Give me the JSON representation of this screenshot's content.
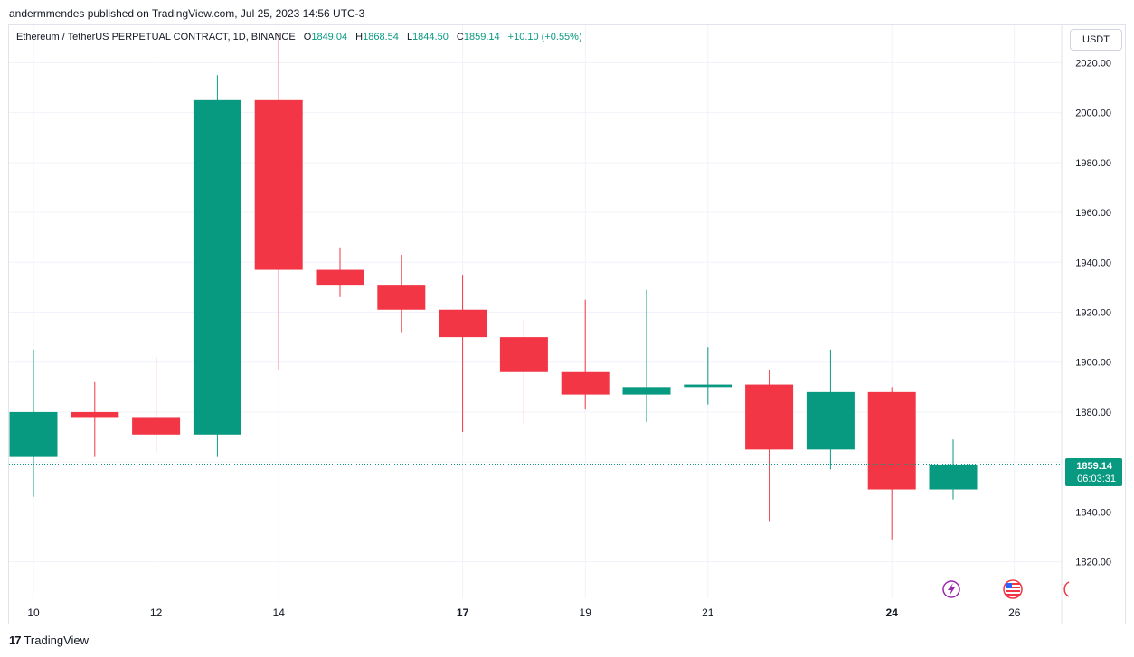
{
  "header": {
    "published": "andermmendes published on TradingView.com, Jul 25, 2023 14:56 UTC-3"
  },
  "legend": {
    "symbol": "Ethereum / TetherUS PERPETUAL CONTRACT, 1D, BINANCE",
    "open_label": "O",
    "open": "1849.04",
    "high_label": "H",
    "high": "1868.54",
    "low_label": "L",
    "low": "1844.50",
    "close_label": "C",
    "close": "1859.14",
    "change": "+10.10 (+0.55%)"
  },
  "currency_button": "USDT",
  "price_badge": {
    "price": "1859.14",
    "countdown": "06:03:31"
  },
  "icons": {
    "lightning": "lightning-event-icon",
    "flag": "us-flag-event-icon",
    "partial": "event-icon"
  },
  "colors": {
    "up": "#089981",
    "down": "#f23645",
    "grid": "#f0f3fa",
    "price_line": "#089981"
  },
  "footer": {
    "brand": "TradingView"
  },
  "chart_data": {
    "type": "candlestick",
    "ylim": [
      1805,
      2035
    ],
    "y_ticks": [
      1820,
      1840,
      1860,
      1880,
      1900,
      1920,
      1940,
      1960,
      1980,
      2000,
      2020
    ],
    "y_tick_labels": [
      "1820.00",
      "1840.00",
      "1860.00",
      "1880.00",
      "1900.00",
      "1920.00",
      "1940.00",
      "1960.00",
      "1980.00",
      "2000.00",
      "2020.00"
    ],
    "x_tick_labels": [
      {
        "label": "10",
        "day": 10
      },
      {
        "label": "12",
        "day": 12
      },
      {
        "label": "14",
        "day": 14
      },
      {
        "label": "17",
        "day": 17
      },
      {
        "label": "19",
        "day": 19
      },
      {
        "label": "21",
        "day": 21
      },
      {
        "label": "24",
        "day": 24
      },
      {
        "label": "26",
        "day": 26
      }
    ],
    "bold_x_ticks": [
      "17",
      "24"
    ],
    "candles": [
      {
        "day": 10,
        "open": 1862,
        "high": 1905,
        "low": 1846,
        "close": 1880
      },
      {
        "day": 11,
        "open": 1880,
        "high": 1892,
        "low": 1862,
        "close": 1878
      },
      {
        "day": 12,
        "open": 1878,
        "high": 1902,
        "low": 1864,
        "close": 1871
      },
      {
        "day": 13,
        "open": 1871,
        "high": 2015,
        "low": 1862,
        "close": 2005
      },
      {
        "day": 14,
        "open": 2005,
        "high": 2032,
        "low": 1897,
        "close": 1937
      },
      {
        "day": 15,
        "open": 1937,
        "high": 1946,
        "low": 1926,
        "close": 1931
      },
      {
        "day": 16,
        "open": 1931,
        "high": 1943,
        "low": 1912,
        "close": 1921
      },
      {
        "day": 17,
        "open": 1921,
        "high": 1935,
        "low": 1872,
        "close": 1910
      },
      {
        "day": 18,
        "open": 1910,
        "high": 1917,
        "low": 1875,
        "close": 1896
      },
      {
        "day": 19,
        "open": 1896,
        "high": 1925,
        "low": 1881,
        "close": 1887
      },
      {
        "day": 20,
        "open": 1887,
        "high": 1929,
        "low": 1876,
        "close": 1890
      },
      {
        "day": 21,
        "open": 1890,
        "high": 1906,
        "low": 1883,
        "close": 1891
      },
      {
        "day": 22,
        "open": 1891,
        "high": 1897,
        "low": 1836,
        "close": 1865
      },
      {
        "day": 23,
        "open": 1865,
        "high": 1905,
        "low": 1857,
        "close": 1888
      },
      {
        "day": 24,
        "open": 1888,
        "high": 1890,
        "low": 1829,
        "close": 1849
      },
      {
        "day": 25,
        "open": 1849,
        "high": 1869,
        "low": 1845,
        "close": 1859
      }
    ],
    "last_price": 1859.14
  }
}
